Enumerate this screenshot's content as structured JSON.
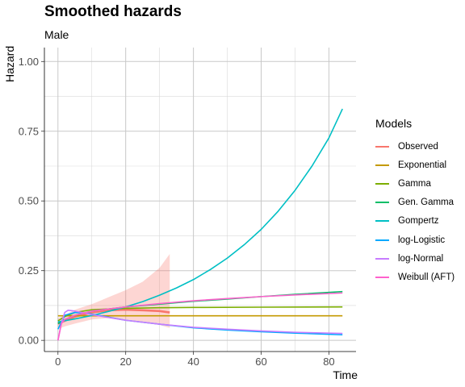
{
  "chart_data": {
    "type": "line",
    "title": "Smoothed hazards",
    "subtitle": "Male",
    "xlabel": "Time",
    "ylabel": "Hazard",
    "xlim": [
      -4,
      88
    ],
    "ylim": [
      -0.04,
      1.05
    ],
    "x_ticks": [
      0,
      20,
      40,
      60,
      80
    ],
    "y_ticks": [
      0.0,
      0.25,
      0.5,
      0.75,
      1.0
    ],
    "y_tick_labels": [
      "0.00",
      "0.25",
      "0.50",
      "0.75",
      "1.00"
    ],
    "grid": true,
    "legend_title": "Models",
    "legend_position": "right",
    "series": [
      {
        "name": "Observed",
        "color": "#F8766D",
        "x": [
          0,
          2,
          5,
          10,
          15,
          20,
          25,
          30,
          33
        ],
        "y": [
          0.06,
          0.07,
          0.085,
          0.1,
          0.108,
          0.11,
          0.108,
          0.105,
          0.1
        ],
        "ci_lower": [
          0.04,
          0.05,
          0.06,
          0.075,
          0.08,
          0.075,
          0.065,
          0.055,
          0.045
        ],
        "ci_upper": [
          0.08,
          0.09,
          0.11,
          0.13,
          0.155,
          0.18,
          0.21,
          0.26,
          0.31
        ]
      },
      {
        "name": "Exponential",
        "color": "#C49A00",
        "x": [
          0,
          84
        ],
        "y": [
          0.088,
          0.088
        ]
      },
      {
        "name": "Gamma",
        "color": "#7CAE00",
        "x": [
          0,
          2,
          5,
          10,
          20,
          30,
          40,
          60,
          84
        ],
        "y": [
          0.07,
          0.085,
          0.1,
          0.11,
          0.115,
          0.117,
          0.118,
          0.119,
          0.12
        ]
      },
      {
        "name": "Gen. Gamma",
        "color": "#00BE67",
        "x": [
          0,
          2,
          5,
          10,
          20,
          30,
          40,
          50,
          60,
          70,
          84
        ],
        "y": [
          0.06,
          0.075,
          0.09,
          0.105,
          0.12,
          0.13,
          0.14,
          0.148,
          0.157,
          0.165,
          0.175
        ]
      },
      {
        "name": "Gompertz",
        "color": "#00BFC4",
        "x": [
          0,
          5,
          10,
          15,
          20,
          25,
          30,
          35,
          40,
          45,
          50,
          55,
          60,
          65,
          70,
          75,
          80,
          84
        ],
        "y": [
          0.066,
          0.077,
          0.089,
          0.104,
          0.12,
          0.139,
          0.162,
          0.188,
          0.218,
          0.254,
          0.295,
          0.343,
          0.398,
          0.463,
          0.538,
          0.625,
          0.726,
          0.83
        ]
      },
      {
        "name": "log-Logistic",
        "color": "#00A9FF",
        "x": [
          0,
          2,
          5,
          8,
          10,
          15,
          20,
          30,
          40,
          50,
          60,
          70,
          84
        ],
        "y": [
          0.04,
          0.09,
          0.1,
          0.098,
          0.094,
          0.083,
          0.072,
          0.058,
          0.045,
          0.037,
          0.031,
          0.026,
          0.02
        ]
      },
      {
        "name": "log-Normal",
        "color": "#C77CFF",
        "x": [
          0,
          1,
          2,
          3,
          5,
          8,
          10,
          15,
          20,
          30,
          40,
          50,
          60,
          70,
          84
        ],
        "y": [
          0.0,
          0.06,
          0.1,
          0.108,
          0.105,
          0.098,
          0.092,
          0.082,
          0.072,
          0.058,
          0.047,
          0.04,
          0.034,
          0.029,
          0.025
        ]
      },
      {
        "name": "Weibull (AFT)",
        "color": "#FF61CC",
        "x": [
          0,
          1,
          2,
          5,
          10,
          20,
          30,
          40,
          50,
          60,
          70,
          84
        ],
        "y": [
          0.0,
          0.06,
          0.075,
          0.09,
          0.105,
          0.12,
          0.132,
          0.142,
          0.15,
          0.157,
          0.163,
          0.17
        ]
      }
    ]
  }
}
